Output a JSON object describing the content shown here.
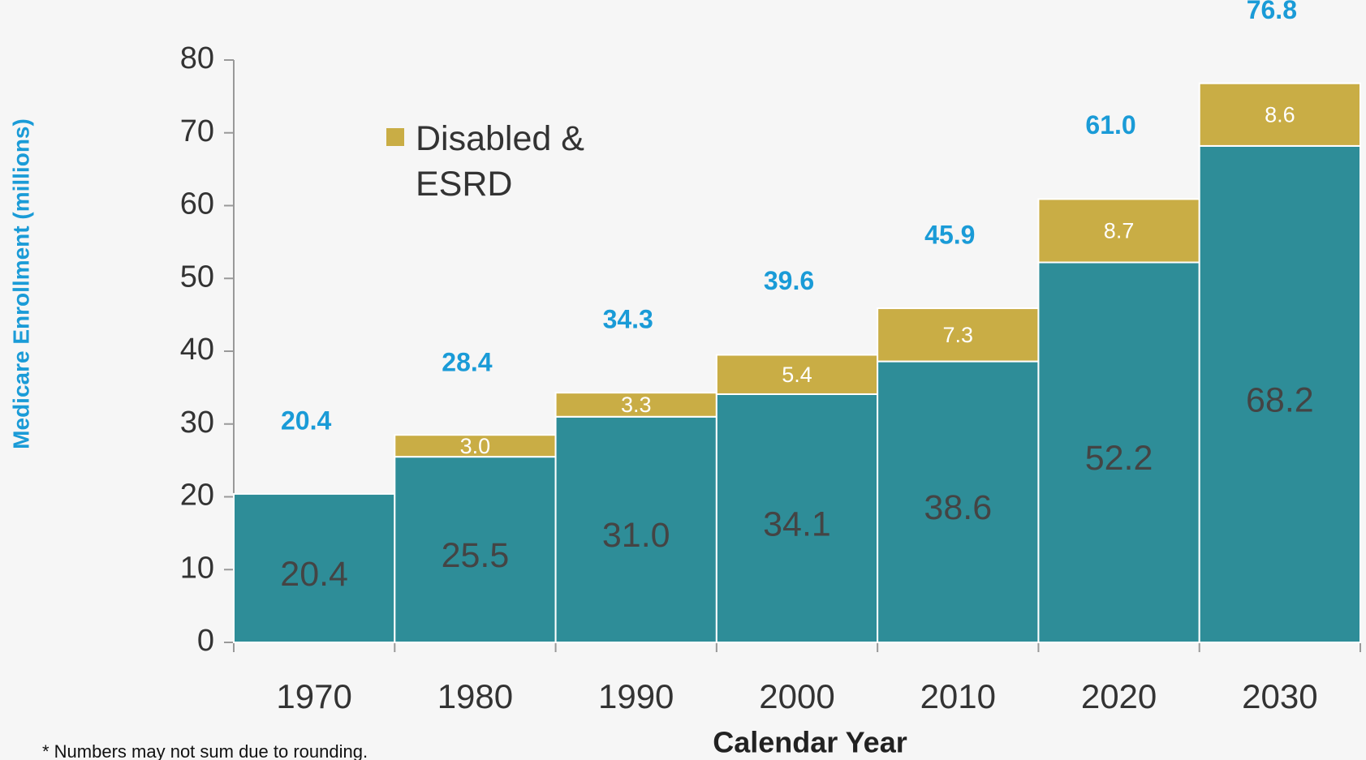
{
  "chart_data": {
    "type": "stacked_bar",
    "y_label": "Medicare Enrollment (millions)",
    "x_label": "Calendar Year",
    "footnote": "* Numbers may not sum due to rounding.",
    "categories": [
      "1970",
      "1980",
      "1990",
      "2000",
      "2010",
      "2020",
      "2030"
    ],
    "series": [
      {
        "color": "#2e8d98",
        "values": [
          20.4,
          25.5,
          31.0,
          34.1,
          38.6,
          52.2,
          68.2
        ],
        "value_labels": [
          "20.4",
          "25.5",
          "31.0",
          "34.1",
          "38.6",
          "52.2",
          "68.2"
        ]
      },
      {
        "name": "Disabled & ESRD",
        "color": "#c9ad45",
        "values": [
          null,
          3.0,
          3.3,
          5.4,
          7.3,
          8.7,
          8.6
        ],
        "value_labels": [
          null,
          "3.0",
          "3.3",
          "5.4",
          "7.3",
          "8.7",
          "8.6"
        ]
      }
    ],
    "totals": [
      20.4,
      28.4,
      34.3,
      39.6,
      45.9,
      61.0,
      76.8
    ],
    "total_labels": [
      "20.4",
      "28.4",
      "34.3",
      "39.6",
      "45.9",
      "61.0",
      "76.8"
    ],
    "ylim": [
      0,
      80
    ],
    "yticks": [
      0,
      10,
      20,
      30,
      40,
      50,
      60,
      70,
      80
    ]
  }
}
